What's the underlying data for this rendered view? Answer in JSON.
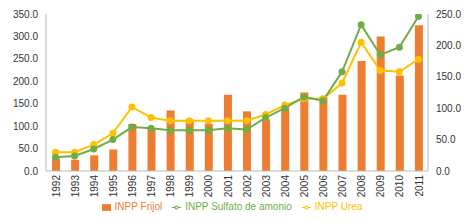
{
  "chart_data": {
    "type": "bar",
    "categories": [
      "1992",
      "1993",
      "1994",
      "1995",
      "1996",
      "1997",
      "1998",
      "1999",
      "2000",
      "2001",
      "2002",
      "2003",
      "2004",
      "2005",
      "2006",
      "2007",
      "2008",
      "2009",
      "2010",
      "2011"
    ],
    "series": [
      {
        "name": "INPP Frijol",
        "type": "bar",
        "color": "#ED7D31",
        "values": [
          28,
          25,
          35,
          48,
          105,
          95,
          135,
          115,
          105,
          170,
          133,
          115,
          143,
          175,
          165,
          170,
          245,
          300,
          213,
          325
        ]
      },
      {
        "name": "INPP Urea",
        "type": "line",
        "axis": "y2",
        "color": "#FFC000",
        "marker": "circle",
        "values": [
          30,
          30,
          42,
          60,
          102,
          85,
          80,
          80,
          80,
          80,
          80,
          90,
          105,
          115,
          115,
          140,
          205,
          160,
          158,
          178
        ]
      },
      {
        "name": "INPP Sulfato de amonio",
        "type": "line",
        "axis": "y2",
        "color": "#70AD47",
        "marker": "circle",
        "values": [
          22,
          24,
          35,
          50,
          70,
          68,
          65,
          65,
          65,
          68,
          66,
          85,
          100,
          118,
          112,
          158,
          233,
          185,
          197,
          246
        ]
      }
    ],
    "ylim": [
      0,
      350
    ],
    "yticks": [
      {
        "value": 0,
        "label": "0.0"
      },
      {
        "value": 50,
        "label": "50.0"
      },
      {
        "value": 100,
        "label": "100.0"
      },
      {
        "value": 150,
        "label": "150.0"
      },
      {
        "value": 200,
        "label": "200.0"
      },
      {
        "value": 250,
        "label": "250.0"
      },
      {
        "value": 300,
        "label": "300.0"
      },
      {
        "value": 350,
        "label": "350.0"
      }
    ],
    "y2lim": [
      0,
      250
    ],
    "y2ticks": [
      {
        "value": 0,
        "label": "0.0"
      },
      {
        "value": 50,
        "label": "50.0"
      },
      {
        "value": 100,
        "label": "100.0"
      },
      {
        "value": 150,
        "label": "150.0"
      },
      {
        "value": 200,
        "label": "200.0"
      },
      {
        "value": 250,
        "label": "250.0"
      }
    ],
    "grid": false,
    "legend": "bottom"
  }
}
